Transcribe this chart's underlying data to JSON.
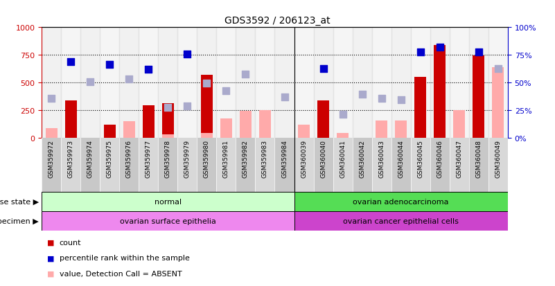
{
  "title": "GDS3592 / 206123_at",
  "samples": [
    "GSM359972",
    "GSM359973",
    "GSM359974",
    "GSM359975",
    "GSM359976",
    "GSM359977",
    "GSM359978",
    "GSM359979",
    "GSM359980",
    "GSM359981",
    "GSM359982",
    "GSM359983",
    "GSM359984",
    "GSM360039",
    "GSM360040",
    "GSM360041",
    "GSM360042",
    "GSM360043",
    "GSM360044",
    "GSM360045",
    "GSM360046",
    "GSM360047",
    "GSM360048",
    "GSM360049"
  ],
  "count": [
    null,
    340,
    null,
    120,
    null,
    295,
    310,
    null,
    570,
    null,
    null,
    null,
    null,
    null,
    335,
    null,
    null,
    null,
    null,
    550,
    840,
    null,
    745,
    null
  ],
  "count_absent": [
    90,
    null,
    null,
    null,
    150,
    null,
    30,
    null,
    45,
    175,
    245,
    250,
    null,
    120,
    null,
    45,
    null,
    155,
    155,
    null,
    null,
    250,
    null,
    640
  ],
  "rank": [
    null,
    690,
    null,
    665,
    null,
    620,
    null,
    755,
    null,
    null,
    null,
    null,
    null,
    null,
    625,
    null,
    null,
    null,
    null,
    775,
    820,
    null,
    775,
    null
  ],
  "rank_absent": [
    355,
    null,
    505,
    null,
    530,
    null,
    275,
    290,
    495,
    425,
    575,
    null,
    370,
    null,
    null,
    210,
    395,
    355,
    345,
    null,
    null,
    null,
    null,
    625
  ],
  "split_index": 13,
  "disease_state_normal": "normal",
  "disease_state_cancer": "ovarian adenocarcinoma",
  "specimen_normal": "ovarian surface epithelia",
  "specimen_cancer": "ovarian cancer epithelial cells",
  "color_count": "#cc0000",
  "color_rank": "#0000cc",
  "color_count_absent": "#ffaaaa",
  "color_rank_absent": "#aaaacc",
  "color_normal_disease": "#ccffcc",
  "color_cancer_disease": "#55dd55",
  "color_normal_specimen": "#ee88ee",
  "color_cancer_specimen": "#cc44cc",
  "color_xtick_odd": "#c8c8c8",
  "color_xtick_even": "#d8d8d8",
  "yticks_left": [
    0,
    250,
    500,
    750,
    1000
  ],
  "ytick_labels_left": [
    "0",
    "250",
    "500",
    "750",
    "1000"
  ],
  "ytick_labels_right": [
    "0%",
    "25%",
    "50%",
    "75%",
    "100%"
  ],
  "hlines": [
    250,
    500,
    750
  ]
}
